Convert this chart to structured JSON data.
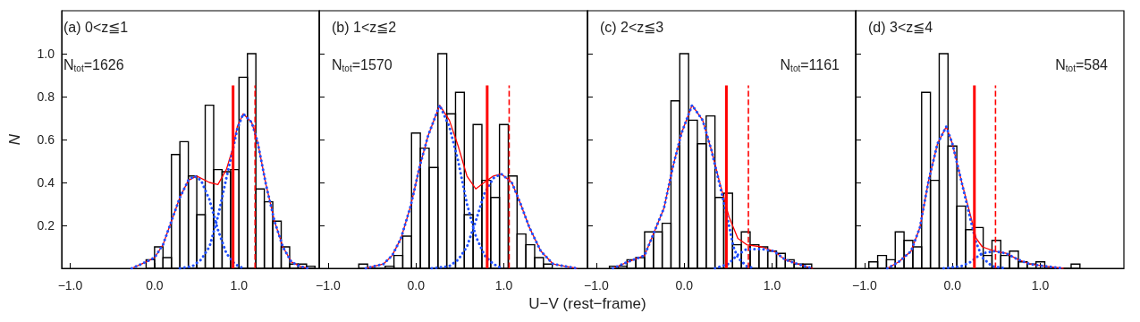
{
  "chart_data": [
    {
      "type": "histogram",
      "ylabel": "N",
      "annotations": [
        "(a) 0<z≦1",
        "N$_{tot}$=1626"
      ],
      "xlim": [
        -1.1,
        1.95
      ],
      "ylim": [
        0,
        1.2
      ],
      "xticks": [
        {
          "value": -1,
          "label": "−1.0"
        },
        {
          "value": 0,
          "label": "0.0"
        },
        {
          "value": 1,
          "label": "1.0"
        }
      ],
      "yticks": [
        0.2,
        0.4,
        0.6,
        0.8,
        {
          "value": 1,
          "label": "1.0"
        }
      ],
      "grid": false,
      "marker": "none",
      "series": [
        {
          "color": "#000000",
          "bins": [
            -0.1,
            0.0,
            0.1,
            0.2,
            0.3,
            0.4,
            0.5,
            0.6,
            0.7,
            0.8,
            0.9,
            1.0,
            1.1,
            1.2,
            1.3,
            1.4,
            1.5,
            1.6,
            1.7,
            1.8,
            1.9
          ],
          "values": [
            0.04,
            0.1,
            0.05,
            0.53,
            0.59,
            0.43,
            0.25,
            0.76,
            0.46,
            0.45,
            0.46,
            0.89,
            1.0,
            0.37,
            0.31,
            0.22,
            0.1,
            0.02,
            0.02,
            0.01
          ]
        },
        {
          "type": "line",
          "color": "#ff0000",
          "line_style": "solid",
          "x": [
            -0.27,
            -0.1,
            0.0,
            0.1,
            0.2,
            0.3,
            0.4,
            0.5,
            0.65,
            0.75,
            0.85,
            0.92,
            0.98,
            1.05,
            1.15,
            1.22,
            1.32,
            1.42,
            1.52,
            1.62,
            1.72,
            1.82
          ],
          "values": [
            0.0,
            0.03,
            0.05,
            0.11,
            0.22,
            0.33,
            0.41,
            0.43,
            0.4,
            0.39,
            0.46,
            0.55,
            0.66,
            0.72,
            0.68,
            0.59,
            0.39,
            0.22,
            0.1,
            0.03,
            0.01,
            0.0
          ]
        },
        {
          "type": "line",
          "color": "#2050ff",
          "line_style": "dotted",
          "x": [
            -0.27,
            -0.1,
            0.0,
            0.1,
            0.2,
            0.3,
            0.4,
            0.47,
            0.55,
            0.65,
            0.75,
            0.85,
            0.95,
            1.05
          ],
          "values": [
            0.0,
            0.03,
            0.05,
            0.11,
            0.22,
            0.33,
            0.41,
            0.43,
            0.41,
            0.32,
            0.18,
            0.07,
            0.02,
            0.0
          ]
        },
        {
          "type": "line",
          "color": "#2050ff",
          "line_style": "dotted",
          "x": [
            0.3,
            0.45,
            0.55,
            0.65,
            0.75,
            0.85,
            0.92,
            0.98,
            1.05,
            1.15,
            1.22,
            1.32,
            1.42,
            1.52,
            1.62,
            1.72,
            1.82
          ],
          "values": [
            0.0,
            0.01,
            0.04,
            0.1,
            0.24,
            0.42,
            0.54,
            0.65,
            0.72,
            0.68,
            0.59,
            0.39,
            0.22,
            0.1,
            0.03,
            0.01,
            0.0
          ]
        }
      ],
      "ref_lines": [
        {
          "axis": "x",
          "value": 0.93,
          "color": "#ff0000",
          "line_style": "solid"
        },
        {
          "axis": "x",
          "value": 1.19,
          "color": "#ff0000",
          "line_style": "dashed"
        }
      ]
    },
    {
      "type": "histogram",
      "xlabel": "U−V (rest−frame)",
      "annotations": [
        "(b) 1<z≦2",
        "N$_{tot}$=1570"
      ],
      "xlim": [
        -1.1,
        1.95
      ],
      "ylim": [
        0,
        1.2
      ],
      "xticks": [
        {
          "value": -1,
          "label": "−1.0"
        },
        {
          "value": 0,
          "label": "0.0"
        },
        {
          "value": 1,
          "label": "1.0"
        }
      ],
      "yticks": [
        0.2,
        0.4,
        0.6,
        0.8,
        1
      ],
      "tick_labels": "x",
      "grid": false,
      "marker": "none",
      "series": [
        {
          "color": "#000000",
          "bins": [
            -0.65,
            -0.55,
            -0.45,
            -0.35,
            -0.25,
            -0.15,
            -0.05,
            0.05,
            0.15,
            0.25,
            0.35,
            0.45,
            0.55,
            0.65,
            0.75,
            0.85,
            0.95,
            1.05,
            1.15,
            1.25,
            1.35,
            1.45,
            1.55
          ],
          "values": [
            0.02,
            0.0,
            0.0,
            0.01,
            0.06,
            0.15,
            0.63,
            0.56,
            0.47,
            1.0,
            0.72,
            0.82,
            0.25,
            0.67,
            0.41,
            0.33,
            0.67,
            0.43,
            0.16,
            0.11,
            0.05,
            0.02
          ]
        },
        {
          "type": "line",
          "color": "#ff0000",
          "line_style": "solid",
          "x": [
            -0.57,
            -0.37,
            -0.27,
            -0.17,
            -0.06,
            0.04,
            0.14,
            0.27,
            0.38,
            0.48,
            0.58,
            0.68,
            0.81,
            0.88,
            0.97,
            1.09,
            1.19,
            1.29,
            1.42,
            1.56,
            1.69,
            1.83
          ],
          "values": [
            0.0,
            0.02,
            0.06,
            0.14,
            0.29,
            0.47,
            0.62,
            0.76,
            0.69,
            0.57,
            0.43,
            0.37,
            0.41,
            0.43,
            0.44,
            0.4,
            0.3,
            0.19,
            0.08,
            0.02,
            0.01,
            0.0
          ]
        },
        {
          "type": "line",
          "color": "#2050ff",
          "line_style": "dotted",
          "x": [
            -0.57,
            -0.37,
            -0.27,
            -0.17,
            -0.06,
            0.04,
            0.14,
            0.27,
            0.38,
            0.48,
            0.58,
            0.68,
            0.78,
            0.88,
            0.98
          ],
          "values": [
            0.0,
            0.02,
            0.06,
            0.14,
            0.29,
            0.47,
            0.62,
            0.76,
            0.66,
            0.5,
            0.3,
            0.15,
            0.06,
            0.02,
            0.0
          ]
        },
        {
          "type": "line",
          "color": "#2050ff",
          "line_style": "dotted",
          "x": [
            0.18,
            0.38,
            0.48,
            0.58,
            0.68,
            0.78,
            0.88,
            0.97,
            1.09,
            1.19,
            1.29,
            1.42,
            1.56,
            1.69,
            1.83
          ],
          "values": [
            0.0,
            0.01,
            0.04,
            0.1,
            0.22,
            0.35,
            0.42,
            0.44,
            0.4,
            0.3,
            0.19,
            0.08,
            0.02,
            0.01,
            0.0
          ]
        }
      ],
      "ref_lines": [
        {
          "axis": "x",
          "value": 0.81,
          "color": "#ff0000",
          "line_style": "solid"
        },
        {
          "axis": "x",
          "value": 1.06,
          "color": "#ff0000",
          "line_style": "dashed"
        }
      ]
    },
    {
      "type": "histogram",
      "annotations": [
        "(c) 2<z≦3",
        "N$_{tot}$=1161"
      ],
      "xlim": [
        -1.1,
        1.95
      ],
      "ylim": [
        0,
        1.2
      ],
      "xticks": [
        {
          "value": -1,
          "label": "−1.0"
        },
        {
          "value": 0,
          "label": "0.0"
        },
        {
          "value": 1,
          "label": "1.0"
        }
      ],
      "yticks": [
        0.2,
        0.4,
        0.6,
        0.8,
        1
      ],
      "tick_labels": "x",
      "grid": false,
      "marker": "none",
      "series": [
        {
          "color": "#000000",
          "bins": [
            -0.85,
            -0.75,
            -0.65,
            -0.55,
            -0.45,
            -0.35,
            -0.25,
            -0.15,
            -0.05,
            0.05,
            0.15,
            0.25,
            0.35,
            0.45,
            0.55,
            0.65,
            0.75,
            0.85,
            0.95,
            1.05,
            1.15,
            1.25,
            1.35,
            1.45
          ],
          "values": [
            0.01,
            0.01,
            0.04,
            0.05,
            0.17,
            0.17,
            0.21,
            0.78,
            1.0,
            0.69,
            0.58,
            0.71,
            0.33,
            0.35,
            0.11,
            0.17,
            0.11,
            0.1,
            0.08,
            0.07,
            0.04,
            0.02,
            0.02
          ]
        },
        {
          "type": "line",
          "color": "#ff0000",
          "line_style": "solid",
          "x": [
            -0.81,
            -0.64,
            -0.45,
            -0.34,
            -0.23,
            -0.13,
            -0.03,
            0.09,
            0.21,
            0.31,
            0.41,
            0.51,
            0.61,
            0.71,
            0.88,
            1.02,
            1.15,
            1.29,
            1.46
          ],
          "values": [
            0.0,
            0.03,
            0.06,
            0.17,
            0.28,
            0.47,
            0.63,
            0.76,
            0.69,
            0.55,
            0.39,
            0.24,
            0.14,
            0.11,
            0.1,
            0.08,
            0.04,
            0.02,
            0.0
          ]
        },
        {
          "type": "line",
          "color": "#2050ff",
          "line_style": "dotted",
          "x": [
            -0.81,
            -0.64,
            -0.45,
            -0.34,
            -0.23,
            -0.13,
            -0.03,
            0.09,
            0.21,
            0.31,
            0.41,
            0.51,
            0.56,
            0.61,
            0.71,
            0.8
          ],
          "values": [
            0.0,
            0.03,
            0.06,
            0.17,
            0.28,
            0.47,
            0.63,
            0.76,
            0.69,
            0.55,
            0.38,
            0.2,
            0.1,
            0.05,
            0.01,
            0.0
          ]
        },
        {
          "type": "line",
          "color": "#2050ff",
          "line_style": "dotted",
          "x": [
            0.35,
            0.5,
            0.6,
            0.71,
            0.88,
            1.02,
            1.15,
            1.29,
            1.46
          ],
          "values": [
            0.0,
            0.02,
            0.06,
            0.09,
            0.09,
            0.08,
            0.04,
            0.02,
            0.0
          ]
        }
      ],
      "ref_lines": [
        {
          "axis": "x",
          "value": 0.48,
          "color": "#ff0000",
          "line_style": "solid"
        },
        {
          "axis": "x",
          "value": 0.73,
          "color": "#ff0000",
          "line_style": "dashed"
        }
      ]
    },
    {
      "type": "histogram",
      "annotations": [
        "(d) 3<z≦4",
        "N$_{tot}$=584"
      ],
      "xlim": [
        -1.1,
        1.95
      ],
      "ylim": [
        0,
        1.2
      ],
      "xticks": [
        {
          "value": -1,
          "label": "−1.0"
        },
        {
          "value": 0,
          "label": "0.0"
        },
        {
          "value": 1,
          "label": "1.0"
        }
      ],
      "yticks": [
        0.2,
        0.4,
        0.6,
        0.8,
        1
      ],
      "tick_labels": "x",
      "grid": false,
      "marker": "none",
      "series": [
        {
          "color": "#000000",
          "bins": [
            -0.95,
            -0.85,
            -0.75,
            -0.65,
            -0.55,
            -0.45,
            -0.35,
            -0.25,
            -0.15,
            -0.05,
            0.05,
            0.15,
            0.25,
            0.35,
            0.45,
            0.55,
            0.65,
            0.75,
            0.85,
            0.95,
            1.05,
            1.15,
            1.25,
            1.35,
            1.45
          ],
          "values": [
            0.03,
            0.06,
            0.04,
            0.17,
            0.13,
            0.1,
            0.82,
            0.41,
            1.0,
            0.57,
            0.29,
            0.18,
            0.19,
            0.06,
            0.13,
            0.06,
            0.08,
            0.03,
            0.02,
            0.03,
            0.0,
            0.0,
            0.0,
            0.02
          ]
        },
        {
          "type": "line",
          "color": "#ff0000",
          "line_style": "solid",
          "x": [
            -0.74,
            -0.61,
            -0.47,
            -0.37,
            -0.27,
            -0.17,
            -0.07,
            0.0,
            0.1,
            0.21,
            0.27,
            0.34,
            0.48,
            0.61,
            0.75,
            0.88,
            1.05,
            1.26
          ],
          "values": [
            0.0,
            0.03,
            0.08,
            0.19,
            0.41,
            0.58,
            0.66,
            0.58,
            0.41,
            0.24,
            0.14,
            0.1,
            0.08,
            0.07,
            0.04,
            0.02,
            0.01,
            0.0
          ]
        },
        {
          "type": "line",
          "color": "#2050ff",
          "line_style": "dotted",
          "x": [
            -0.74,
            -0.61,
            -0.47,
            -0.37,
            -0.27,
            -0.17,
            -0.07,
            0.0,
            0.1,
            0.21,
            0.27,
            0.34,
            0.45,
            0.6
          ],
          "values": [
            0.0,
            0.03,
            0.08,
            0.19,
            0.41,
            0.58,
            0.66,
            0.58,
            0.41,
            0.22,
            0.12,
            0.05,
            0.01,
            0.0
          ]
        },
        {
          "type": "line",
          "color": "#2050ff",
          "line_style": "dotted",
          "x": [
            -0.1,
            0.1,
            0.21,
            0.27,
            0.34,
            0.48,
            0.61,
            0.75,
            0.88,
            1.05,
            1.26
          ],
          "values": [
            0.0,
            0.01,
            0.03,
            0.05,
            0.07,
            0.08,
            0.07,
            0.04,
            0.02,
            0.01,
            0.0
          ]
        }
      ],
      "ref_lines": [
        {
          "axis": "x",
          "value": 0.25,
          "color": "#ff0000",
          "line_style": "solid"
        },
        {
          "axis": "x",
          "value": 0.49,
          "color": "#ff0000",
          "line_style": "dashed"
        }
      ]
    }
  ]
}
